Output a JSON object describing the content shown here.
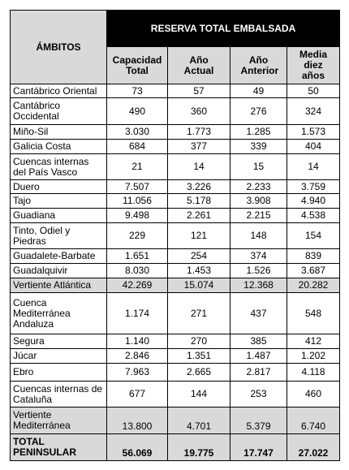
{
  "table": {
    "header": {
      "first_column": "ÁMBITOS",
      "group": "RESERVA TOTAL EMBALSADA",
      "columns": [
        "Capacidad Total",
        "Año Actual",
        "Año Anterior",
        "Media diez años"
      ]
    },
    "rows": [
      [
        "Cantábrico Oriental",
        "73",
        "57",
        "49",
        "50"
      ],
      [
        "Cantábrico Occidental",
        "490",
        "360",
        "276",
        "324"
      ],
      [
        "Miño-Sil",
        "3.030",
        "1.773",
        "1.285",
        "1.573"
      ],
      [
        "Galicia Costa",
        "684",
        "377",
        "339",
        "404"
      ],
      [
        "Cuencas internas del País Vasco",
        "21",
        "14",
        "15",
        "14"
      ],
      [
        "Duero",
        "7.507",
        "3.226",
        "2.233",
        "3.759"
      ],
      [
        "Tajo",
        "11.056",
        "5.178",
        "3.908",
        "4.940"
      ],
      [
        "Guadiana",
        "9.498",
        "2.261",
        "2.215",
        "4.538"
      ],
      [
        "Tinto, Odiel y Piedras",
        "229",
        "121",
        "148",
        "154"
      ],
      [
        "Guadalete-Barbate",
        "1.651",
        "254",
        "374",
        "839"
      ],
      [
        "Guadalquivir",
        "8.030",
        "1.453",
        "1.526",
        "3.687"
      ],
      [
        "Vertiente Atlántica",
        "42.269",
        "15.074",
        "12.368",
        "20.282"
      ],
      [
        "Cuenca Mediterránea Andaluza",
        "1.174",
        "271",
        "437",
        "548"
      ],
      [
        "Segura",
        "1.140",
        "270",
        "385",
        "412"
      ],
      [
        "Júcar",
        "2.846",
        "1.351",
        "1.487",
        "1.202"
      ],
      [
        "Ebro",
        "7.963",
        "2.665",
        "2.817",
        "4.118"
      ],
      [
        "Cuencas internas de Cataluña",
        "677",
        "144",
        "253",
        "460"
      ],
      [
        "Vertiente Mediterránea",
        "13.800",
        "4.701",
        "5.379",
        "6.740"
      ],
      [
        "TOTAL PENINSULAR",
        "56.069",
        "19.775",
        "17.747",
        "27.022"
      ]
    ]
  }
}
